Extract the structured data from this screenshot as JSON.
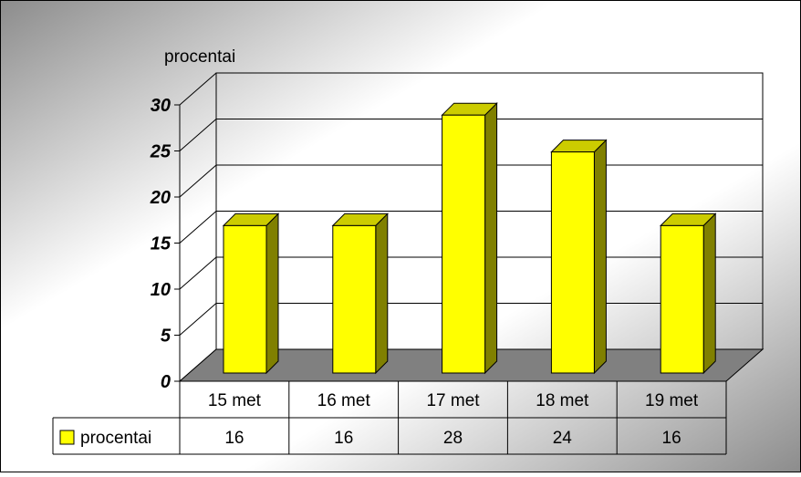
{
  "chart_data": {
    "type": "bar",
    "title": "",
    "ylabel": "procentai",
    "xlabel": "",
    "categories": [
      "15 met",
      "16 met",
      "17 met",
      "18 met",
      "19 met"
    ],
    "series": [
      {
        "name": "procentai",
        "values": [
          16,
          16,
          28,
          24,
          16
        ]
      }
    ],
    "ylim": [
      0,
      30
    ],
    "yticks": [
      0,
      5,
      10,
      15,
      20,
      25,
      30
    ],
    "grid": true,
    "three_d": true,
    "data_table": true,
    "legend": "in data table",
    "colors": {
      "bar_front": "#ffff00",
      "bar_side": "#808000",
      "bar_top": "#cccc00",
      "floor": "#808080",
      "background_light": "#ffffff",
      "background_dark": "#8c8c8c"
    }
  }
}
